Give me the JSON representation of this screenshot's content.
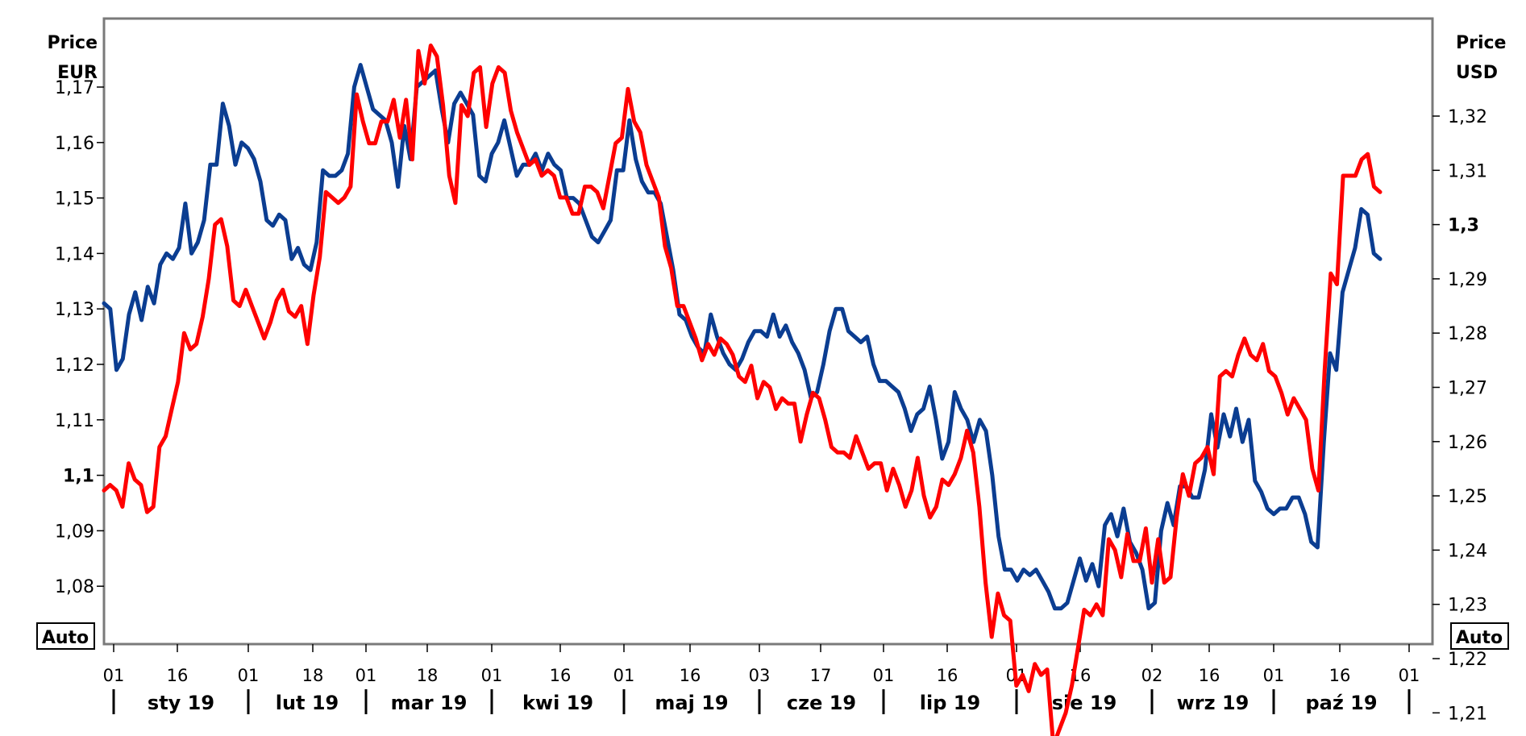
{
  "chart_data": {
    "type": "line",
    "left_axis": {
      "title_line1": "Price",
      "title_line2": "EUR",
      "ticks": [
        "1,17",
        "1,16",
        "1,15",
        "1,14",
        "1,13",
        "1,12",
        "1,11",
        "1,1",
        "1,09",
        "1,08"
      ],
      "tick_values": [
        1.17,
        1.16,
        1.15,
        1.14,
        1.13,
        1.12,
        1.11,
        1.1,
        1.09,
        1.08
      ],
      "bold_tick": "1,1",
      "auto_label": "Auto"
    },
    "right_axis": {
      "title_line1": "Price",
      "title_line2": "USD",
      "ticks": [
        "1,32",
        "1,31",
        "1,3",
        "1,29",
        "1,28",
        "1,27",
        "1,26",
        "1,25",
        "1,24",
        "1,23",
        "1,22",
        "1,21"
      ],
      "tick_values": [
        1.32,
        1.31,
        1.3,
        1.29,
        1.28,
        1.27,
        1.26,
        1.25,
        1.24,
        1.23,
        1.22,
        1.21
      ],
      "bold_tick": "1,3",
      "auto_label": "Auto"
    },
    "x_axis": {
      "day_ticks": [
        "01",
        "16",
        "01",
        "18",
        "01",
        "18",
        "01",
        "16",
        "01",
        "16",
        "03",
        "17",
        "01",
        "16",
        "01",
        "16",
        "02",
        "16",
        "01",
        "16",
        "01"
      ],
      "months": [
        "sty 19",
        "lut 19",
        "mar 19",
        "kwi 19",
        "maj 19",
        "cze 19",
        "lip 19",
        "sie 19",
        "wrz 19",
        "paź 19"
      ]
    },
    "series": [
      {
        "axis": "left",
        "color": "#0b3d91",
        "values": [
          1.131,
          1.13,
          1.119,
          1.121,
          1.129,
          1.133,
          1.128,
          1.134,
          1.131,
          1.138,
          1.14,
          1.139,
          1.141,
          1.149,
          1.14,
          1.142,
          1.146,
          1.156,
          1.156,
          1.167,
          1.163,
          1.156,
          1.16,
          1.159,
          1.157,
          1.153,
          1.146,
          1.145,
          1.147,
          1.146,
          1.139,
          1.141,
          1.138,
          1.137,
          1.142,
          1.155,
          1.154,
          1.154,
          1.155,
          1.158,
          1.17,
          1.174,
          1.17,
          1.166,
          1.165,
          1.164,
          1.16,
          1.152,
          1.163,
          1.157,
          1.17,
          1.171,
          1.172,
          1.173,
          1.166,
          1.16,
          1.167,
          1.169,
          1.167,
          1.165,
          1.154,
          1.153,
          1.158,
          1.16,
          1.164,
          1.159,
          1.154,
          1.156,
          1.156,
          1.158,
          1.155,
          1.158,
          1.156,
          1.155,
          1.15,
          1.15,
          1.149,
          1.146,
          1.143,
          1.142,
          1.144,
          1.146,
          1.155,
          1.155,
          1.164,
          1.157,
          1.153,
          1.151,
          1.151,
          1.149,
          1.143,
          1.137,
          1.129,
          1.128,
          1.125,
          1.123,
          1.122,
          1.129,
          1.125,
          1.122,
          1.12,
          1.119,
          1.121,
          1.124,
          1.126,
          1.126,
          1.125,
          1.129,
          1.125,
          1.127,
          1.124,
          1.122,
          1.119,
          1.114,
          1.115,
          1.12,
          1.126,
          1.13,
          1.13,
          1.126,
          1.125,
          1.124,
          1.125,
          1.12,
          1.117,
          1.117,
          1.116,
          1.115,
          1.112,
          1.108,
          1.111,
          1.112,
          1.116,
          1.11,
          1.103,
          1.106,
          1.115,
          1.112,
          1.11,
          1.106,
          1.11,
          1.108,
          1.1,
          1.089,
          1.083,
          1.083,
          1.081,
          1.083,
          1.082,
          1.083,
          1.081,
          1.079,
          1.076,
          1.076,
          1.077,
          1.081,
          1.085,
          1.081,
          1.084,
          1.08,
          1.091,
          1.093,
          1.089,
          1.094,
          1.088,
          1.086,
          1.083,
          1.076,
          1.077,
          1.09,
          1.095,
          1.091,
          1.098,
          1.098,
          1.096,
          1.096,
          1.101,
          1.111,
          1.105,
          1.111,
          1.107,
          1.112,
          1.106,
          1.11,
          1.099,
          1.097,
          1.094,
          1.093,
          1.094,
          1.094,
          1.096,
          1.096,
          1.093,
          1.088,
          1.087,
          1.106,
          1.122,
          1.119,
          1.133,
          1.137,
          1.141,
          1.148,
          1.147,
          1.14,
          1.139
        ]
      },
      {
        "axis": "right",
        "color": "#ff0000",
        "values": [
          1.251,
          1.252,
          1.251,
          1.248,
          1.256,
          1.253,
          1.252,
          1.247,
          1.248,
          1.259,
          1.261,
          1.266,
          1.271,
          1.28,
          1.277,
          1.278,
          1.283,
          1.29,
          1.3,
          1.301,
          1.296,
          1.286,
          1.285,
          1.288,
          1.285,
          1.282,
          1.279,
          1.282,
          1.286,
          1.288,
          1.284,
          1.283,
          1.285,
          1.278,
          1.287,
          1.294,
          1.306,
          1.305,
          1.304,
          1.305,
          1.307,
          1.324,
          1.319,
          1.315,
          1.315,
          1.319,
          1.319,
          1.323,
          1.316,
          1.323,
          1.312,
          1.332,
          1.326,
          1.333,
          1.331,
          1.322,
          1.309,
          1.304,
          1.322,
          1.32,
          1.328,
          1.329,
          1.318,
          1.326,
          1.329,
          1.328,
          1.321,
          1.317,
          1.314,
          1.311,
          1.312,
          1.309,
          1.31,
          1.309,
          1.305,
          1.305,
          1.302,
          1.302,
          1.307,
          1.307,
          1.306,
          1.303,
          1.309,
          1.315,
          1.316,
          1.325,
          1.319,
          1.317,
          1.311,
          1.308,
          1.305,
          1.296,
          1.292,
          1.285,
          1.285,
          1.282,
          1.279,
          1.275,
          1.278,
          1.276,
          1.279,
          1.278,
          1.276,
          1.272,
          1.271,
          1.274,
          1.268,
          1.271,
          1.27,
          1.266,
          1.268,
          1.267,
          1.267,
          1.26,
          1.265,
          1.269,
          1.268,
          1.264,
          1.259,
          1.258,
          1.258,
          1.257,
          1.261,
          1.258,
          1.255,
          1.256,
          1.256,
          1.251,
          1.255,
          1.252,
          1.248,
          1.251,
          1.257,
          1.25,
          1.246,
          1.248,
          1.253,
          1.252,
          1.254,
          1.257,
          1.262,
          1.258,
          1.248,
          1.234,
          1.224,
          1.232,
          1.228,
          1.227,
          1.215,
          1.217,
          1.214,
          1.219,
          1.217,
          1.218,
          1.204,
          1.207,
          1.21,
          1.215,
          1.222,
          1.229,
          1.228,
          1.23,
          1.228,
          1.242,
          1.24,
          1.235,
          1.243,
          1.238,
          1.238,
          1.244,
          1.234,
          1.242,
          1.234,
          1.235,
          1.246,
          1.254,
          1.25,
          1.256,
          1.257,
          1.259,
          1.254,
          1.272,
          1.273,
          1.272,
          1.276,
          1.279,
          1.276,
          1.275,
          1.278,
          1.273,
          1.272,
          1.269,
          1.265,
          1.268,
          1.266,
          1.264,
          1.255,
          1.251,
          1.273,
          1.291,
          1.289,
          1.309,
          1.309,
          1.309,
          1.312,
          1.313,
          1.307,
          1.306
        ]
      }
    ]
  }
}
